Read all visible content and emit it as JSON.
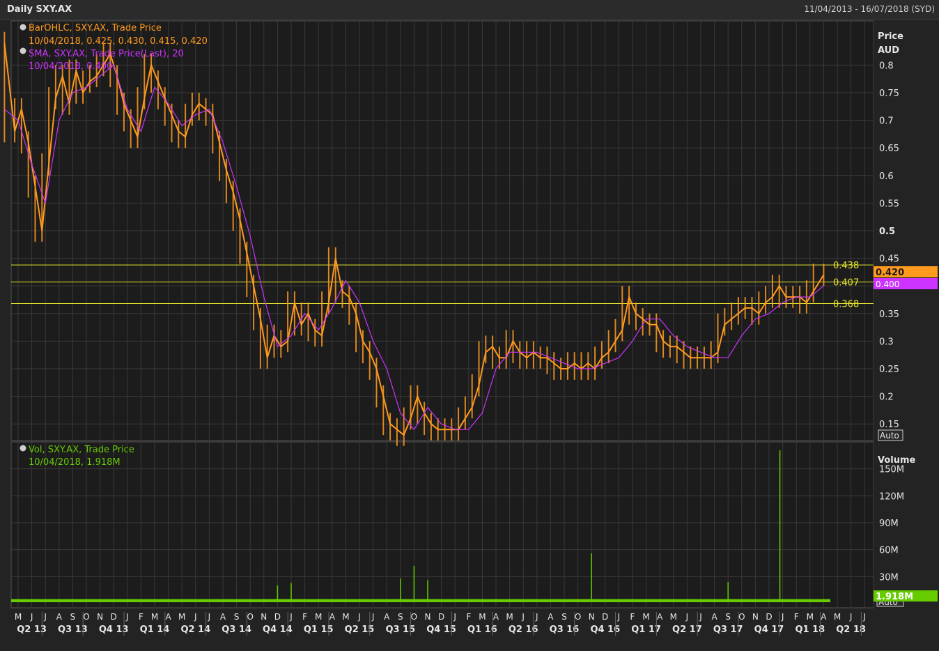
{
  "window": {
    "title": "Daily SXY.AX",
    "date_range": "11/04/2013 - 16/07/2018 (SYD)"
  },
  "colors": {
    "background": "#232323",
    "grid": "#3a3a3a",
    "price": "#ff9a1f",
    "sma": "#cc33ff",
    "volume": "#66cc00",
    "hline": "#e6e62e",
    "axis_text": "#e6e6e6"
  },
  "price_panel": {
    "legend": [
      {
        "icon": "series-icon",
        "label": "BarOHLC, SXY.AX, Trade Price",
        "value": "10/04/2018, 0.425, 0.430, 0.415, 0.420",
        "color": "#ff9a1f"
      },
      {
        "icon": "series-icon",
        "label": "SMA, SXY.AX, Trade Price(Last),  20",
        "value": "10/04/2018, 0.400",
        "color": "#cc33ff"
      }
    ],
    "axis_title_1": "Price",
    "axis_title_2": "AUD",
    "last_price_label": "0.420",
    "last_sma_label": "0.400",
    "auto_label": "Auto",
    "hlines": [
      {
        "value": 0.438,
        "label": "0.438"
      },
      {
        "value": 0.407,
        "label": "0.407"
      },
      {
        "value": 0.368,
        "label": "0.368"
      }
    ]
  },
  "volume_panel": {
    "legend": {
      "icon": "series-icon",
      "label": "Vol, SXY.AX, Trade Price",
      "value": "10/04/2018, 1.918M"
    },
    "axis_title": "Volume",
    "last_volume_label": "1.918M",
    "auto_label": "Auto"
  },
  "chart_data": [
    {
      "type": "line",
      "title": "",
      "ylabel": "Price AUD",
      "ylim": [
        0.12,
        0.88
      ],
      "yticks": [
        0.15,
        0.2,
        0.25,
        0.3,
        0.35,
        0.4,
        0.45,
        0.5,
        0.55,
        0.6,
        0.65,
        0.7,
        0.75,
        0.8
      ],
      "ytick_labels": [
        "0.15",
        "0.2",
        "0.25",
        "0.3",
        "0.35",
        "",
        "0.45",
        "0.5",
        "0.55",
        "0.6",
        "0.65",
        "0.7",
        "0.75",
        "0.8"
      ],
      "x_month_labels": [
        "M",
        "J",
        "J",
        "A",
        "S",
        "O",
        "N",
        "D",
        "J",
        "F",
        "M",
        "A",
        "M",
        "J",
        "J",
        "A",
        "S",
        "O",
        "N",
        "D",
        "J",
        "F",
        "M",
        "A",
        "M",
        "J",
        "J",
        "A",
        "S",
        "O",
        "N",
        "D",
        "J",
        "F",
        "M",
        "A",
        "M",
        "J",
        "J",
        "A",
        "S",
        "O",
        "N",
        "D",
        "J",
        "F",
        "M",
        "A",
        "M",
        "J",
        "J",
        "A",
        "S",
        "O",
        "N",
        "D",
        "J",
        "F",
        "M",
        "A",
        "M",
        "J",
        "J"
      ],
      "x_quarter_labels": [
        "Q2 13",
        "Q3 13",
        "Q4 13",
        "Q1 14",
        "Q2 14",
        "Q3 14",
        "Q4 14",
        "Q1 15",
        "Q2 15",
        "Q3 15",
        "Q4 15",
        "Q1 16",
        "Q2 16",
        "Q3 16",
        "Q4 16",
        "Q1 17",
        "Q2 17",
        "Q3 17",
        "Q4 17",
        "Q1 18",
        "Q2 18"
      ],
      "x_start": "2013-05",
      "grid": true,
      "series": [
        {
          "name": "BarOHLC, SXY.AX, Trade Price",
          "x": [
            "2013-04",
            "2013-05",
            "2013-05",
            "2013-06",
            "2013-06",
            "2013-07",
            "2013-07",
            "2013-08",
            "2013-08",
            "2013-09",
            "2013-09",
            "2013-10",
            "2013-10",
            "2013-11",
            "2013-11",
            "2013-12",
            "2013-12",
            "2014-01",
            "2014-01",
            "2014-02",
            "2014-02",
            "2014-03",
            "2014-03",
            "2014-04",
            "2014-04",
            "2014-05",
            "2014-05",
            "2014-06",
            "2014-06",
            "2014-07",
            "2014-07",
            "2014-08",
            "2014-08",
            "2014-09",
            "2014-09",
            "2014-10",
            "2014-10",
            "2014-11",
            "2014-11",
            "2014-12",
            "2014-12",
            "2015-01",
            "2015-01",
            "2015-02",
            "2015-02",
            "2015-03",
            "2015-03",
            "2015-04",
            "2015-04",
            "2015-05",
            "2015-05",
            "2015-06",
            "2015-06",
            "2015-07",
            "2015-07",
            "2015-08",
            "2015-08",
            "2015-09",
            "2015-09",
            "2015-10",
            "2015-10",
            "2015-11",
            "2015-11",
            "2015-12",
            "2015-12",
            "2016-01",
            "2016-01",
            "2016-02",
            "2016-02",
            "2016-03",
            "2016-03",
            "2016-04",
            "2016-04",
            "2016-05",
            "2016-05",
            "2016-06",
            "2016-06",
            "2016-07",
            "2016-07",
            "2016-08",
            "2016-08",
            "2016-09",
            "2016-09",
            "2016-10",
            "2016-10",
            "2016-11",
            "2016-11",
            "2016-12",
            "2016-12",
            "2017-01",
            "2017-01",
            "2017-02",
            "2017-02",
            "2017-03",
            "2017-03",
            "2017-04",
            "2017-04",
            "2017-05",
            "2017-05",
            "2017-06",
            "2017-06",
            "2017-07",
            "2017-07",
            "2017-08",
            "2017-08",
            "2017-09",
            "2017-09",
            "2017-10",
            "2017-10",
            "2017-11",
            "2017-11",
            "2017-12",
            "2017-12",
            "2018-01",
            "2018-01",
            "2018-02",
            "2018-02",
            "2018-03",
            "2018-03",
            "2018-04"
          ],
          "values": [
            0.84,
            0.68,
            0.72,
            0.66,
            0.58,
            0.5,
            0.62,
            0.74,
            0.78,
            0.73,
            0.79,
            0.75,
            0.77,
            0.78,
            0.8,
            0.82,
            0.78,
            0.73,
            0.7,
            0.67,
            0.74,
            0.8,
            0.77,
            0.74,
            0.71,
            0.68,
            0.67,
            0.71,
            0.73,
            0.72,
            0.71,
            0.66,
            0.61,
            0.57,
            0.52,
            0.46,
            0.4,
            0.34,
            0.27,
            0.31,
            0.29,
            0.3,
            0.37,
            0.33,
            0.35,
            0.32,
            0.31,
            0.37,
            0.45,
            0.39,
            0.38,
            0.35,
            0.3,
            0.28,
            0.25,
            0.2,
            0.15,
            0.14,
            0.13,
            0.16,
            0.2,
            0.17,
            0.15,
            0.14,
            0.14,
            0.14,
            0.14,
            0.16,
            0.18,
            0.22,
            0.28,
            0.29,
            0.27,
            0.27,
            0.3,
            0.28,
            0.27,
            0.28,
            0.27,
            0.27,
            0.26,
            0.25,
            0.25,
            0.26,
            0.25,
            0.26,
            0.25,
            0.27,
            0.28,
            0.3,
            0.32,
            0.38,
            0.35,
            0.34,
            0.33,
            0.33,
            0.3,
            0.29,
            0.29,
            0.28,
            0.27,
            0.27,
            0.27,
            0.27,
            0.28,
            0.33,
            0.34,
            0.35,
            0.36,
            0.36,
            0.35,
            0.37,
            0.38,
            0.4,
            0.38,
            0.38,
            0.38,
            0.37,
            0.39,
            0.42
          ]
        },
        {
          "name": "SMA, SXY.AX, Trade Price(Last),  20",
          "x": [
            "2013-04",
            "2013-05",
            "2013-06",
            "2013-07",
            "2013-08",
            "2013-09",
            "2013-10",
            "2013-11",
            "2013-12",
            "2014-01",
            "2014-02",
            "2014-03",
            "2014-04",
            "2014-05",
            "2014-06",
            "2014-07",
            "2014-08",
            "2014-09",
            "2014-10",
            "2014-11",
            "2014-12",
            "2015-01",
            "2015-02",
            "2015-03",
            "2015-04",
            "2015-05",
            "2015-06",
            "2015-07",
            "2015-08",
            "2015-09",
            "2015-10",
            "2015-11",
            "2015-12",
            "2016-01",
            "2016-02",
            "2016-03",
            "2016-04",
            "2016-05",
            "2016-06",
            "2016-07",
            "2016-08",
            "2016-09",
            "2016-10",
            "2016-11",
            "2016-12",
            "2017-01",
            "2017-02",
            "2017-03",
            "2017-04",
            "2017-05",
            "2017-06",
            "2017-07",
            "2017-08",
            "2017-09",
            "2017-10",
            "2017-11",
            "2017-12",
            "2018-01",
            "2018-02",
            "2018-03",
            "2018-04"
          ],
          "values": [
            0.72,
            0.7,
            0.62,
            0.55,
            0.7,
            0.75,
            0.76,
            0.78,
            0.8,
            0.72,
            0.68,
            0.76,
            0.73,
            0.69,
            0.71,
            0.72,
            0.66,
            0.58,
            0.49,
            0.38,
            0.29,
            0.31,
            0.35,
            0.32,
            0.36,
            0.41,
            0.37,
            0.3,
            0.25,
            0.17,
            0.14,
            0.18,
            0.15,
            0.14,
            0.14,
            0.17,
            0.25,
            0.28,
            0.28,
            0.28,
            0.27,
            0.26,
            0.25,
            0.25,
            0.26,
            0.27,
            0.3,
            0.34,
            0.34,
            0.31,
            0.29,
            0.28,
            0.27,
            0.27,
            0.31,
            0.34,
            0.35,
            0.37,
            0.38,
            0.38,
            0.4
          ]
        }
      ]
    },
    {
      "type": "bar",
      "title": "",
      "ylabel": "Volume",
      "ylim": [
        0,
        180
      ],
      "yunit": "M",
      "yticks": [
        30,
        60,
        90,
        120,
        150
      ],
      "ytick_labels": [
        "30M",
        "60M",
        "90M",
        "120M",
        "150M"
      ],
      "series": [
        {
          "name": "Vol, SXY.AX, Trade Price",
          "baseline": 5,
          "x": [
            "2014-12",
            "2015-01",
            "2015-09",
            "2015-10",
            "2015-11",
            "2016-11",
            "2018-01",
            "2017-09"
          ],
          "values": [
            20,
            23,
            28,
            42,
            26,
            56,
            193,
            24
          ]
        }
      ]
    }
  ]
}
